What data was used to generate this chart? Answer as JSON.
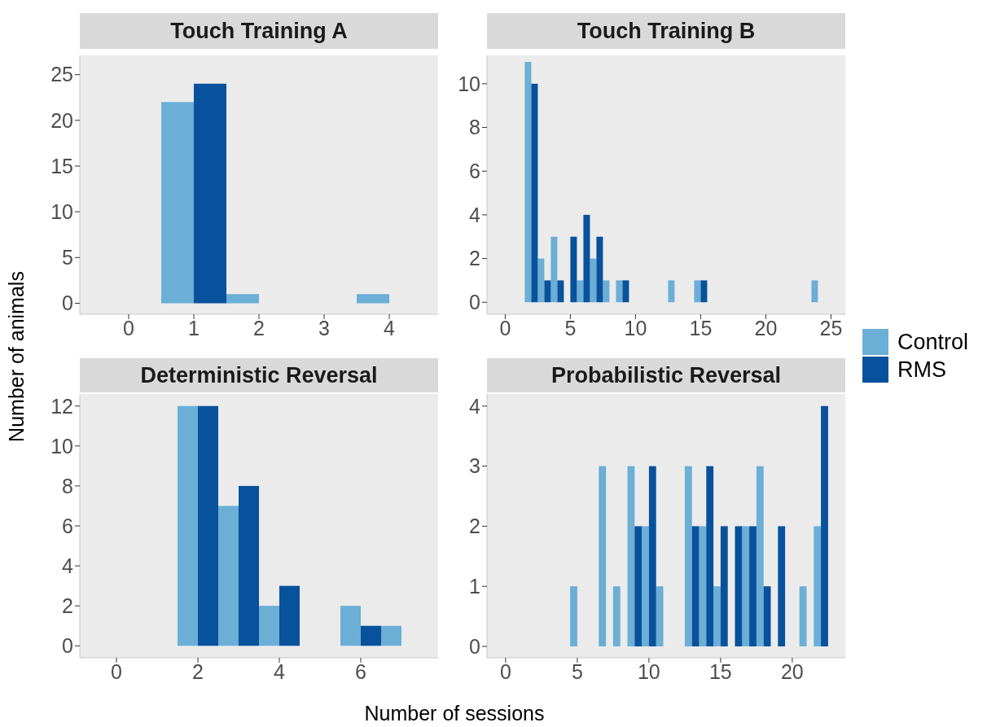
{
  "chart_data": [
    {
      "type": "bar",
      "title": "Touch Training A",
      "legend": "right",
      "ylabel": "Number of animals",
      "x": [
        1,
        2,
        4
      ],
      "series": [
        {
          "name": "Control",
          "color": "#6baed6",
          "values": [
            22,
            1,
            1
          ]
        },
        {
          "name": "RMS",
          "color": "#08519c",
          "values": [
            24,
            null,
            null
          ]
        }
      ],
      "xlim": [
        -0.75,
        4.75
      ],
      "xticks": [
        0,
        1,
        2,
        3,
        4
      ],
      "ylim": [
        -1.2,
        27.1
      ],
      "yticks": [
        0,
        5,
        10,
        15,
        20,
        25
      ]
    },
    {
      "type": "bar",
      "title": "Touch Training B",
      "x": [
        2,
        3,
        4,
        5,
        6,
        7,
        8,
        9,
        13,
        15,
        24
      ],
      "series": [
        {
          "color": "#6baed6",
          "values": [
            11,
            2,
            3,
            null,
            1,
            2,
            1,
            1,
            1,
            1,
            1
          ]
        },
        {
          "color": "#08519c",
          "values": [
            10,
            1,
            1,
            3,
            4,
            3,
            null,
            1,
            null,
            1,
            null
          ]
        }
      ],
      "xlim": [
        -1.4,
        26.1
      ],
      "xticks": [
        0,
        5,
        10,
        15,
        20,
        25
      ],
      "ylim": [
        -0.55,
        11.3
      ],
      "yticks": [
        0,
        2,
        4,
        6,
        8,
        10
      ]
    },
    {
      "type": "bar",
      "title": "Deterministic Reversal",
      "xlabel": "Number of sessions",
      "x": [
        2,
        3,
        4,
        6,
        7
      ],
      "series": [
        {
          "color": "#6baed6",
          "values": [
            12,
            7,
            2,
            2,
            1
          ]
        },
        {
          "color": "#08519c",
          "values": [
            12,
            8,
            3,
            1,
            null
          ]
        }
      ],
      "xlim": [
        -0.9,
        7.9
      ],
      "xticks": [
        0,
        2,
        4,
        6
      ],
      "ylim": [
        -0.6,
        12.6
      ],
      "yticks": [
        0,
        2,
        4,
        6,
        8,
        10,
        12
      ]
    },
    {
      "type": "bar",
      "title": "Probabilistic Reversal",
      "x": [
        5,
        7,
        8,
        9,
        10,
        11,
        13,
        14,
        15,
        16,
        17,
        18,
        19,
        21,
        22
      ],
      "series": [
        {
          "color": "#6baed6",
          "values": [
            1,
            3,
            1,
            3,
            2,
            1,
            3,
            2,
            1,
            null,
            2,
            3,
            null,
            1,
            2
          ]
        },
        {
          "color": "#08519c",
          "values": [
            null,
            null,
            null,
            2,
            3,
            null,
            2,
            3,
            2,
            2,
            2,
            1,
            2,
            null,
            4
          ]
        }
      ],
      "xlim": [
        -1.3,
        23.7
      ],
      "xticks": [
        0,
        5,
        10,
        15,
        20
      ],
      "ylim": [
        -0.19,
        4.2
      ],
      "yticks": [
        0,
        1,
        2,
        3,
        4
      ]
    }
  ]
}
